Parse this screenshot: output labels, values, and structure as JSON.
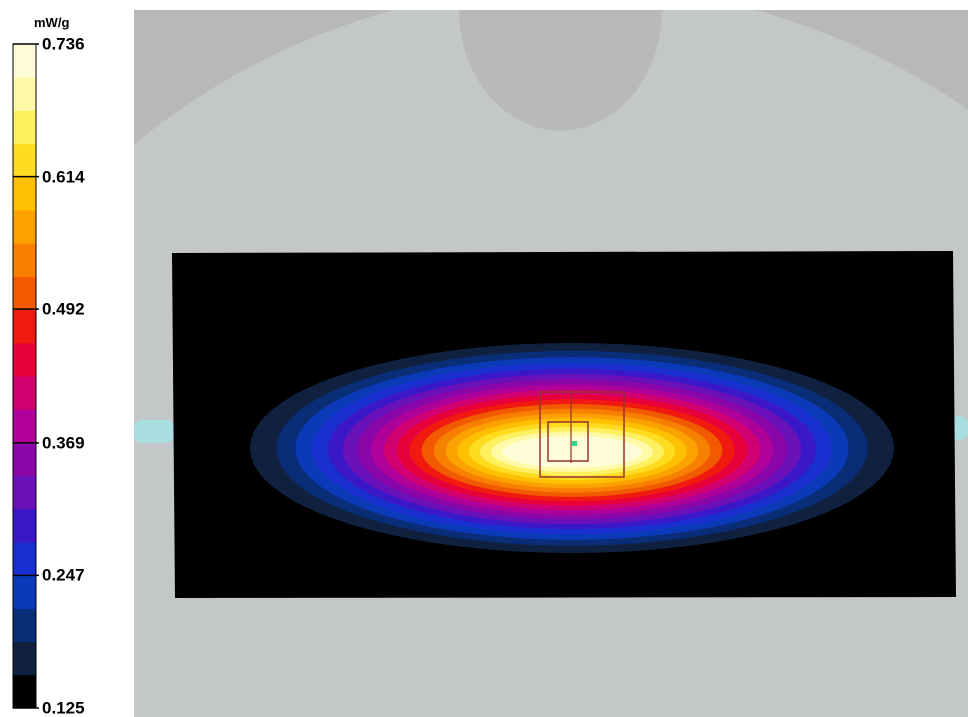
{
  "chart_data": {
    "type": "heatmap",
    "unit": "mW/g",
    "range": [
      0.125,
      0.736
    ],
    "tick_labels": [
      "0.736",
      "0.614",
      "0.492",
      "0.369",
      "0.247",
      "0.125"
    ],
    "tick_values": [
      0.736,
      0.614,
      0.492,
      0.369,
      0.247,
      0.125
    ],
    "color_levels": [
      "#000000",
      "#10213f",
      "#0a2d78",
      "#0b3ab8",
      "#1a2fd0",
      "#3a18c8",
      "#6a10b8",
      "#8a06a8",
      "#b0009a",
      "#d00070",
      "#e8003a",
      "#f01a10",
      "#f25a00",
      "#f88000",
      "#fca200",
      "#fec000",
      "#ffdc20",
      "#fff060",
      "#fff9a8",
      "#fffdd8"
    ],
    "peak": 0.736
  }
}
